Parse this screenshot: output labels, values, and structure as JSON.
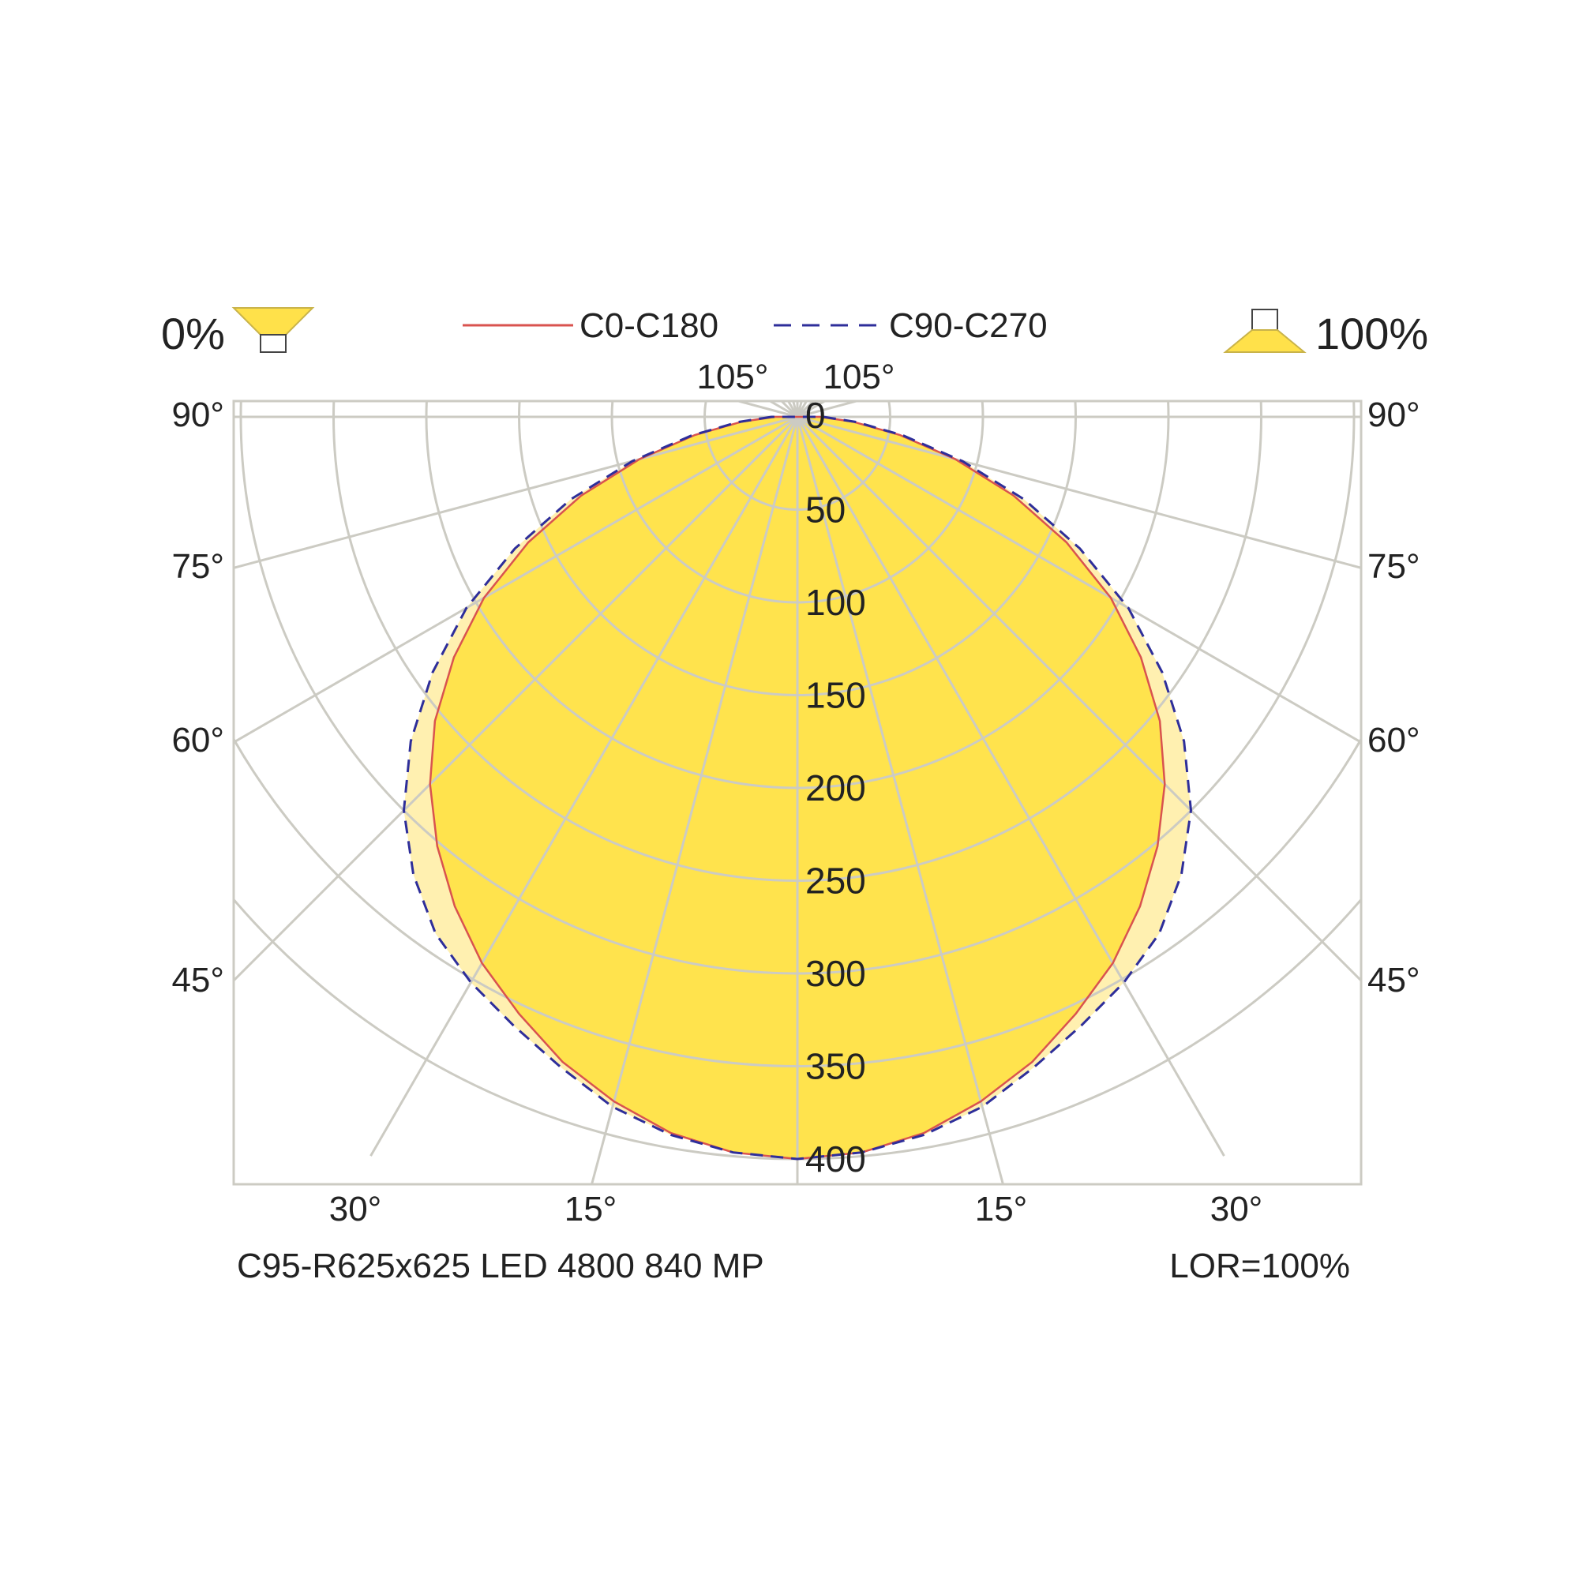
{
  "legend": {
    "left_percent": "0%",
    "right_percent": "100%",
    "series_c0": "C0-C180",
    "series_c90": "C90-C270"
  },
  "angle_labels": {
    "top_left": "105°",
    "top_right": "105°",
    "left": [
      "90°",
      "75°",
      "60°",
      "45°"
    ],
    "right": [
      "90°",
      "75°",
      "60°",
      "45°"
    ],
    "bottom": [
      "30°",
      "15°",
      "15°",
      "30°"
    ]
  },
  "footer": {
    "product": "C95-R625x625 LED 4800 840 MP",
    "lor": "LOR=100%"
  },
  "colors": {
    "c0_line": "#d9534f",
    "c90_line": "#2e2e9a",
    "c0_fill": "#ffe34d",
    "c90_fill": "#fff0b0",
    "grid": "#cccbc3",
    "icon_yellow": "#ffe14a"
  },
  "chart_data": {
    "type": "polar",
    "radial_ticks": [
      0,
      50,
      100,
      150,
      200,
      250,
      300,
      350,
      400
    ],
    "rlim": [
      0,
      400
    ],
    "angle_unit": "deg",
    "series": [
      {
        "name": "C0-C180",
        "angles": [
          0,
          5,
          10,
          15,
          20,
          25,
          30,
          35,
          40,
          45,
          50,
          55,
          60,
          65,
          70,
          75,
          80,
          85,
          90
        ],
        "values": [
          400,
          398,
          392,
          382,
          370,
          355,
          340,
          322,
          302,
          280,
          255,
          226,
          195,
          160,
          124,
          88,
          56,
          30,
          12
        ]
      },
      {
        "name": "C90-C270",
        "angles": [
          0,
          5,
          10,
          15,
          20,
          25,
          30,
          35,
          40,
          45,
          50,
          55,
          60,
          65,
          70,
          75,
          80,
          85,
          90
        ],
        "values": [
          400,
          398,
          393,
          385,
          373,
          362,
          352,
          340,
          322,
          300,
          272,
          240,
          206,
          168,
          130,
          92,
          58,
          32,
          14
        ]
      }
    ]
  }
}
